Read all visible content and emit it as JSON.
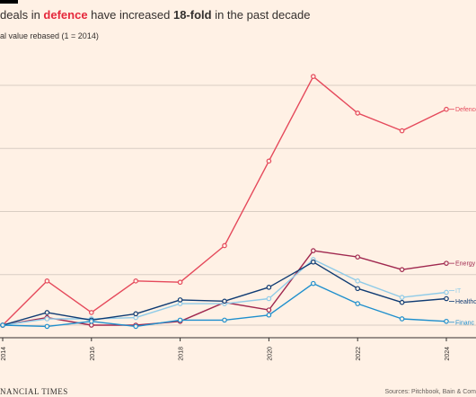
{
  "header": {
    "title_pre": " deals in ",
    "title_highlight": "defence",
    "title_mid": " have increased ",
    "title_bold": "18-fold",
    "title_post": " in the past decade",
    "subtitle": "al value rebased (1 = 2014)"
  },
  "footer": {
    "brand": "NANCIAL TIMES",
    "sources": "Sources: Pitchbook, Bain & Com"
  },
  "colors": {
    "background": "#fff1e5",
    "grid": "#d9cdc3",
    "axis": "#33302e",
    "Defence": "#e5495b",
    "Energy": "#a0284f",
    "IT": "#8fcbe8",
    "Healthcare": "#0f3b73",
    "Financials": "#1e8fcd"
  },
  "chart_data": {
    "type": "line",
    "x": [
      2014,
      2015,
      2016,
      2017,
      2018,
      2019,
      2020,
      2021,
      2022,
      2023,
      2024
    ],
    "xticks": [
      "2014",
      "2016",
      "2018",
      "2020",
      "2022",
      "2024"
    ],
    "xlim": [
      2014,
      2024
    ],
    "ylim": [
      0,
      20.7
    ],
    "yticks": [
      1,
      5,
      10,
      15,
      20
    ],
    "ytick_labels_visible": false,
    "grid": true,
    "legend": "inline labels at right end of each line",
    "series": [
      {
        "name": "Defence",
        "values": [
          1,
          4.5,
          2.0,
          4.5,
          4.4,
          7.3,
          14.0,
          20.7,
          17.8,
          16.4,
          18.1
        ]
      },
      {
        "name": "Energy",
        "values": [
          1,
          1.6,
          1.0,
          1.0,
          1.3,
          2.8,
          2.2,
          6.9,
          6.4,
          5.4,
          5.9
        ]
      },
      {
        "name": "IT",
        "values": [
          1,
          1.5,
          1.5,
          1.6,
          2.7,
          2.7,
          3.1,
          6.2,
          4.5,
          3.2,
          3.6
        ]
      },
      {
        "name": "Healthcare",
        "values": [
          1,
          2.0,
          1.4,
          1.9,
          3.0,
          2.9,
          4.0,
          6.0,
          3.9,
          2.8,
          3.1
        ]
      },
      {
        "name": "Financials",
        "values": [
          1,
          0.9,
          1.3,
          0.9,
          1.4,
          1.4,
          1.8,
          4.3,
          2.7,
          1.5,
          1.3
        ]
      }
    ],
    "end_labels": [
      {
        "series": "Defence",
        "text": "Defence"
      },
      {
        "series": "Energy",
        "text": "Energy"
      },
      {
        "series": "IT",
        "text": "IT"
      },
      {
        "series": "Healthcare",
        "text": "Healthc"
      },
      {
        "series": "Financials",
        "text": "Financ"
      }
    ]
  }
}
